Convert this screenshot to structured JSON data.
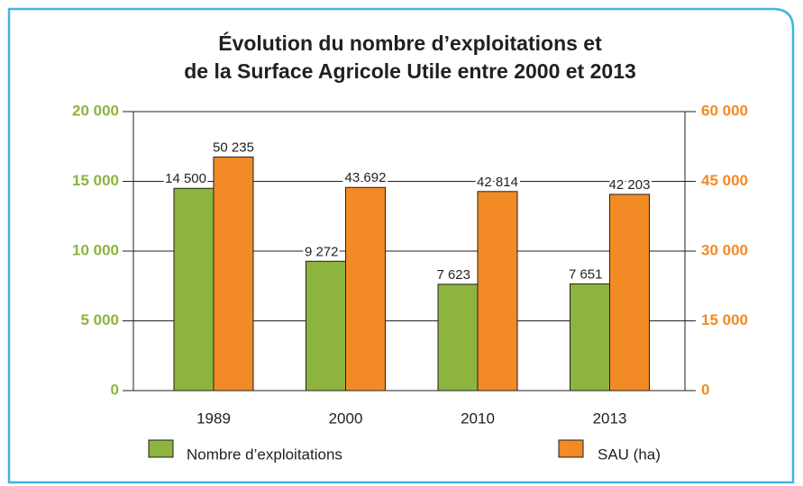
{
  "chart_data": {
    "type": "bar",
    "title": [
      "Évolution du nombre d’exploitations et",
      "de la Surface Agricole Utile entre 2000 et 2013"
    ],
    "categories": [
      "1989",
      "2000",
      "2010",
      "2013"
    ],
    "series": [
      {
        "name": "Nombre d’exploitations",
        "color": "#8db43e",
        "values": [
          14500,
          9272,
          7623,
          7651
        ],
        "value_labels": [
          "14 500",
          "9 272",
          "7 623",
          "7 651"
        ]
      },
      {
        "name": "SAU (ha)",
        "color": "#f28a25",
        "axis": "y2",
        "values": [
          50235,
          43692,
          42814,
          42203
        ],
        "value_labels": [
          "50 235",
          "43 692",
          "42 814",
          "42 203"
        ]
      }
    ],
    "ylim": [
      0,
      20000
    ],
    "yticks": [
      0,
      {
        "value": 5000,
        "label": "5 000"
      },
      {
        "value": 10000,
        "label": "10 000"
      },
      {
        "value": 15000,
        "label": "15 000"
      },
      {
        "value": 20000,
        "label": "20 000"
      }
    ],
    "y2lim": [
      0,
      60000
    ],
    "y2ticks": [
      0,
      {
        "value": 15000,
        "label": "15 000"
      },
      {
        "value": 30000,
        "label": "30 000"
      },
      {
        "value": 45000,
        "label": "45 000"
      },
      {
        "value": 60000,
        "label": "60 000"
      }
    ],
    "grid": true
  }
}
